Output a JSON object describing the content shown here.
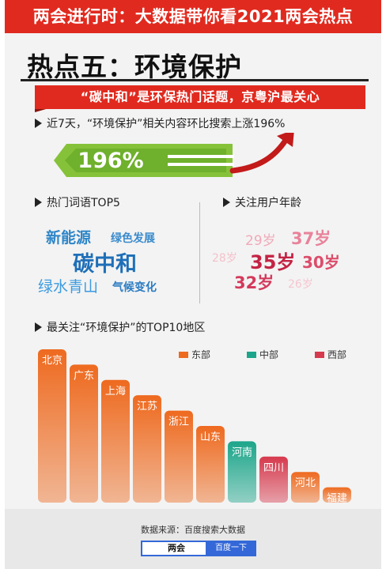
{
  "banner": {
    "title": "两会进行时：大数据带你看2021两会热点"
  },
  "section": {
    "title": "热点五：环境保护",
    "ribbon": "“碳中和”是环保热门话题，京粤沪最关心"
  },
  "bullets": {
    "growth": "近7天，“环境保护”相关内容环比搜索上涨196%",
    "words": "热门词语TOP5",
    "ages": "关注用户年龄",
    "regions": "最关注“环境保护”的TOP10地区"
  },
  "growth": {
    "value": "196%"
  },
  "colors": {
    "brand_red": "#e12a1f",
    "east": "#ee6a1f",
    "central": "#1ca58a",
    "west": "#d63a4d",
    "search_blue": "#3468d8"
  },
  "hot_words": [
    {
      "text": "新能源",
      "color": "#2e86c8"
    },
    {
      "text": "绿色发展",
      "color": "#3a8bcc"
    },
    {
      "text": "碳中和",
      "color": "#1e6fb8"
    },
    {
      "text": "绿水青山",
      "color": "#3b9be0"
    },
    {
      "text": "气候变化",
      "color": "#2c7cc2"
    }
  ],
  "ages": [
    {
      "text": "29岁",
      "color": "#f0a9b8"
    },
    {
      "text": "37岁",
      "color": "#e9829a"
    },
    {
      "text": "28岁",
      "color": "#f4c1cb"
    },
    {
      "text": "35岁",
      "color": "#c42344"
    },
    {
      "text": "30岁",
      "color": "#dc4d6b"
    },
    {
      "text": "32岁",
      "color": "#d33a5c"
    },
    {
      "text": "26岁",
      "color": "#f5c6d0"
    }
  ],
  "legend": [
    {
      "label": "东部",
      "color": "#ee6a1f"
    },
    {
      "label": "中部",
      "color": "#1ca58a"
    },
    {
      "label": "西部",
      "color": "#d63a4d"
    }
  ],
  "chart_data": {
    "type": "bar",
    "title": "最关注“环境保护”的TOP10地区",
    "categories": [
      "北京",
      "广东",
      "上海",
      "江苏",
      "浙江",
      "山东",
      "河南",
      "四川",
      "河北",
      "福建"
    ],
    "region_group": [
      "东部",
      "东部",
      "东部",
      "东部",
      "东部",
      "东部",
      "中部",
      "西部",
      "东部",
      "东部"
    ],
    "values": [
      10,
      9,
      8,
      7,
      6,
      5,
      4,
      3,
      2,
      1
    ],
    "value_note": "rank order only; bars descend by rank, no numeric axis shown"
  },
  "footer": {
    "source": "数据来源：百度搜索大数据",
    "search_text": "两会",
    "search_button": "百度一下"
  }
}
